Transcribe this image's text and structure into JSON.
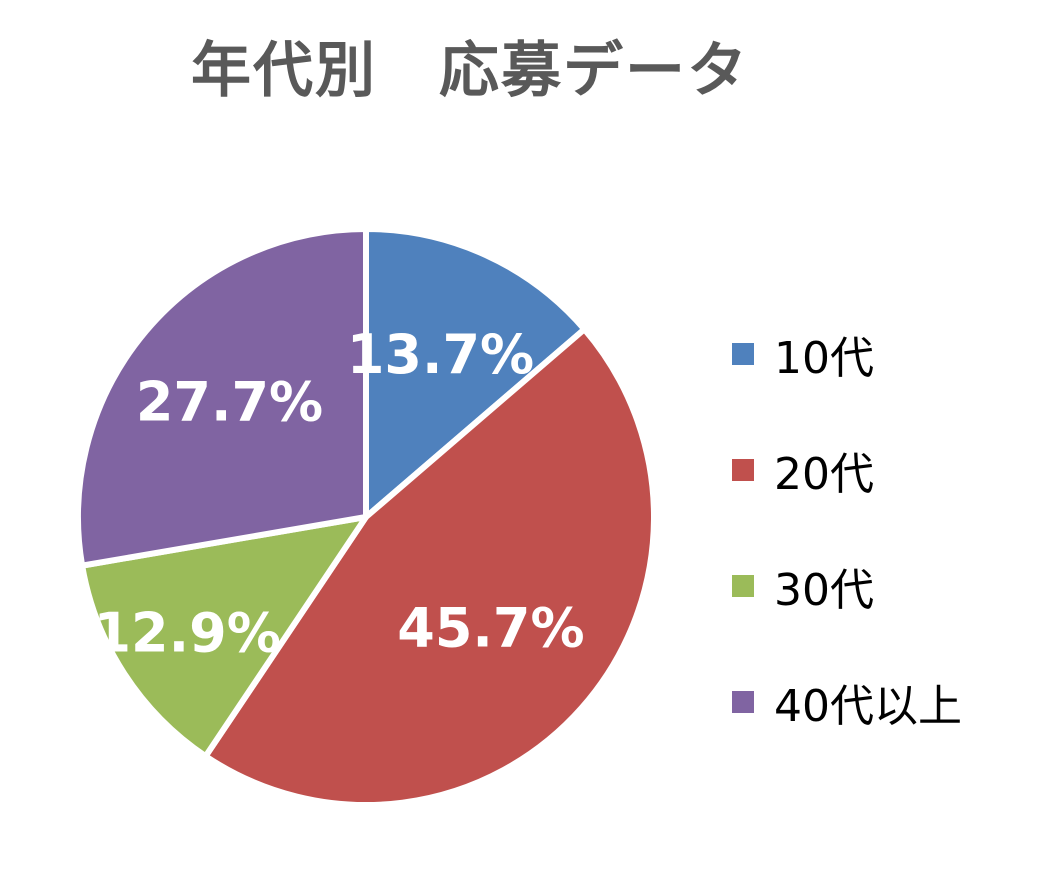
{
  "chart_data": {
    "type": "pie",
    "title": "年代別　応募データ",
    "categories": [
      "10代",
      "20代",
      "30代",
      "40代以上"
    ],
    "values": [
      13.7,
      45.7,
      12.9,
      27.7
    ],
    "labels": [
      "13.7%",
      "45.7%",
      "12.9%",
      "27.7%"
    ],
    "colors": [
      "#4F81BD",
      "#C0504D",
      "#9BBB59",
      "#8064A2"
    ],
    "legend_position": "right"
  }
}
